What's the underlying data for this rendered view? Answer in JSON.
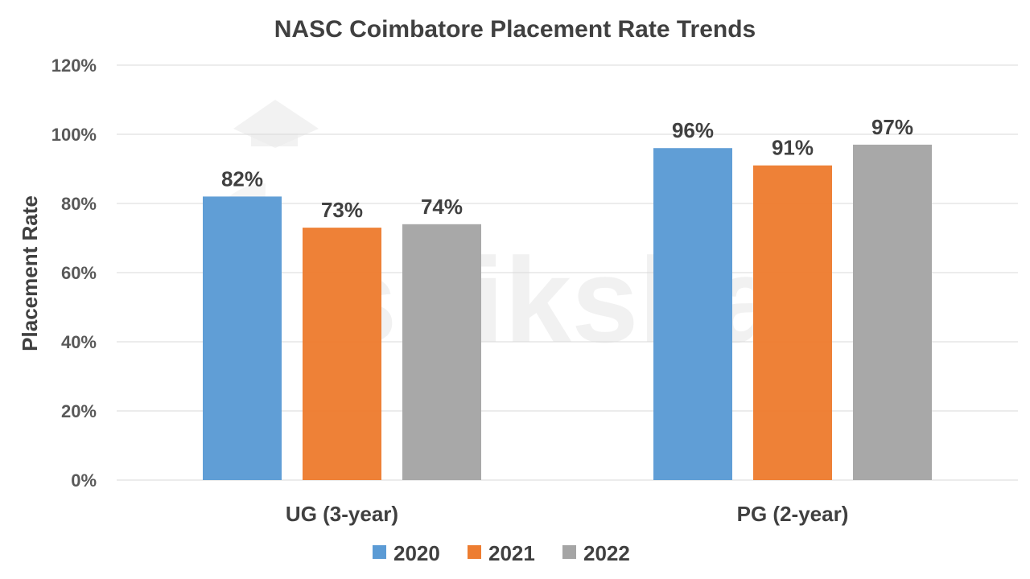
{
  "chart_data": {
    "type": "bar",
    "title": "NASC Coimbatore Placement Rate Trends",
    "xlabel": "",
    "ylabel": "Placement Rate",
    "categories": [
      "UG (3-year)",
      "PG (2-year)"
    ],
    "series": [
      {
        "name": "2020",
        "values": [
          82,
          96
        ],
        "labels": [
          "82%",
          "96%"
        ],
        "color": "#5b9bd5"
      },
      {
        "name": "2021",
        "values": [
          73,
          91
        ],
        "labels": [
          "73%",
          "91%"
        ],
        "color": "#ed7d31"
      },
      {
        "name": "2022",
        "values": [
          74,
          97
        ],
        "labels": [
          "74%",
          "97%"
        ],
        "color": "#a5a5a5"
      }
    ],
    "ylim": [
      0,
      120
    ],
    "yticks": [
      0,
      20,
      40,
      60,
      80,
      100,
      120
    ],
    "ytick_labels": [
      "0%",
      "20%",
      "40%",
      "60%",
      "80%",
      "100%",
      "120%"
    ],
    "grid": true,
    "legend_position": "bottom",
    "watermark": "shiksha"
  }
}
